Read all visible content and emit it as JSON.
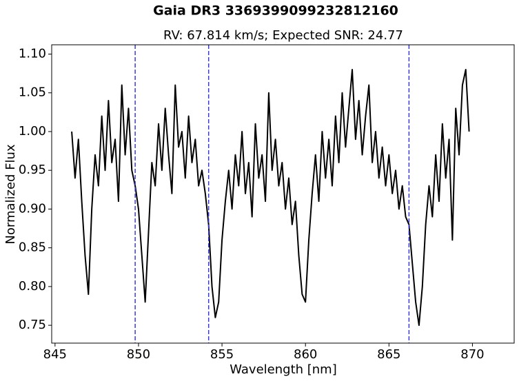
{
  "chart_data": {
    "type": "line",
    "title": "Gaia DR3 3369399099232812160",
    "subtitle": "RV: 67.814 km/s; Expected SNR: 24.77",
    "x_label": "Wavelength [nm]",
    "y_label": "Normalized Flux",
    "xlim": [
      844.8,
      872.5
    ],
    "ylim": [
      0.727,
      1.112
    ],
    "xticks": [
      845,
      850,
      855,
      860,
      865,
      870
    ],
    "yticks": [
      0.75,
      {
        "value": 0.8,
        "label": "0.80"
      },
      0.85,
      {
        "value": 0.9,
        "label": "0.90"
      },
      0.95,
      {
        "value": 1.0,
        "label": "1.00"
      },
      1.05,
      {
        "value": 1.1,
        "label": "1.10"
      }
    ],
    "vlines": [
      849.8,
      854.2,
      866.2
    ],
    "vline_color": "#3a3adb",
    "x": [
      846.0,
      846.2,
      846.4,
      846.6,
      846.8,
      847.0,
      847.2,
      847.4,
      847.6,
      847.8,
      848.0,
      848.2,
      848.4,
      848.6,
      848.8,
      849.0,
      849.2,
      849.4,
      849.6,
      849.8,
      850.0,
      850.2,
      850.4,
      850.6,
      850.8,
      851.0,
      851.2,
      851.4,
      851.6,
      851.8,
      852.0,
      852.2,
      852.4,
      852.6,
      852.8,
      853.0,
      853.2,
      853.4,
      853.6,
      853.8,
      854.0,
      854.2,
      854.4,
      854.6,
      854.8,
      855.0,
      855.2,
      855.4,
      855.6,
      855.8,
      856.0,
      856.2,
      856.4,
      856.6,
      856.8,
      857.0,
      857.2,
      857.4,
      857.6,
      857.8,
      858.0,
      858.2,
      858.4,
      858.6,
      858.8,
      859.0,
      859.2,
      859.4,
      859.6,
      859.8,
      860.0,
      860.2,
      860.4,
      860.6,
      860.8,
      861.0,
      861.2,
      861.4,
      861.6,
      861.8,
      862.0,
      862.2,
      862.4,
      862.6,
      862.8,
      863.0,
      863.2,
      863.4,
      863.6,
      863.8,
      864.0,
      864.2,
      864.4,
      864.6,
      864.8,
      865.0,
      865.2,
      865.4,
      865.6,
      865.8,
      866.0,
      866.2,
      866.4,
      866.6,
      866.8,
      867.0,
      867.2,
      867.4,
      867.6,
      867.8,
      868.0,
      868.2,
      868.4,
      868.6,
      868.8,
      869.0,
      869.2,
      869.4,
      869.6,
      869.8
    ],
    "series": [
      {
        "color": "#000000",
        "values": [
          1.0,
          0.94,
          0.99,
          0.91,
          0.84,
          0.79,
          0.9,
          0.97,
          0.93,
          1.02,
          0.95,
          1.04,
          0.96,
          0.99,
          0.91,
          1.06,
          0.97,
          1.03,
          0.95,
          0.93,
          0.9,
          0.84,
          0.78,
          0.87,
          0.96,
          0.93,
          1.01,
          0.95,
          1.03,
          0.97,
          0.92,
          1.06,
          0.98,
          1.0,
          0.94,
          1.02,
          0.96,
          0.99,
          0.93,
          0.95,
          0.92,
          0.88,
          0.8,
          0.76,
          0.78,
          0.86,
          0.91,
          0.95,
          0.9,
          0.97,
          0.93,
          1.0,
          0.92,
          0.96,
          0.89,
          1.01,
          0.94,
          0.97,
          0.91,
          1.05,
          0.95,
          0.99,
          0.93,
          0.96,
          0.9,
          0.94,
          0.88,
          0.91,
          0.84,
          0.79,
          0.78,
          0.86,
          0.92,
          0.97,
          0.91,
          1.0,
          0.94,
          0.99,
          0.93,
          1.02,
          0.96,
          1.05,
          0.98,
          1.03,
          1.08,
          0.99,
          1.04,
          0.97,
          1.02,
          1.06,
          0.96,
          1.0,
          0.94,
          0.98,
          0.93,
          0.97,
          0.92,
          0.95,
          0.9,
          0.93,
          0.89,
          0.88,
          0.83,
          0.78,
          0.75,
          0.8,
          0.88,
          0.93,
          0.89,
          0.97,
          0.91,
          1.01,
          0.94,
          0.99,
          0.86,
          1.03,
          0.97,
          1.06,
          1.08,
          1.0
        ]
      }
    ]
  }
}
